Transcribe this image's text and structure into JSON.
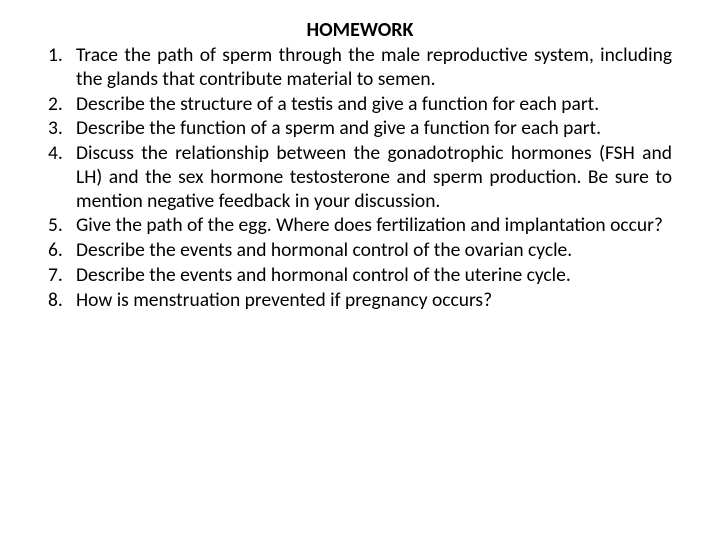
{
  "title": "HOMEWORK",
  "title_fontsize": 20,
  "body_fontsize": 19.5,
  "text_color": "#000000",
  "background_color": "#ffffff",
  "font_family": "Calibri, Arial, sans-serif",
  "items": [
    "Trace the path of sperm through the male reproductive system, including the glands that contribute material to semen.",
    "Describe the structure of a testis and give a function for each part.",
    "Describe the function of a sperm and give a function for each part.",
    "Discuss the relationship between the gonadotrophic hormones (FSH and LH) and the sex hormone testosterone and sperm production.  Be sure to mention negative feedback in your discussion.",
    "Give the path of the egg.  Where does fertilization and implantation occur?",
    "Describe the events and hormonal control of the ovarian cycle.",
    "Describe the events and hormonal control of the uterine cycle.",
    "How is menstruation prevented if pregnancy occurs?"
  ]
}
